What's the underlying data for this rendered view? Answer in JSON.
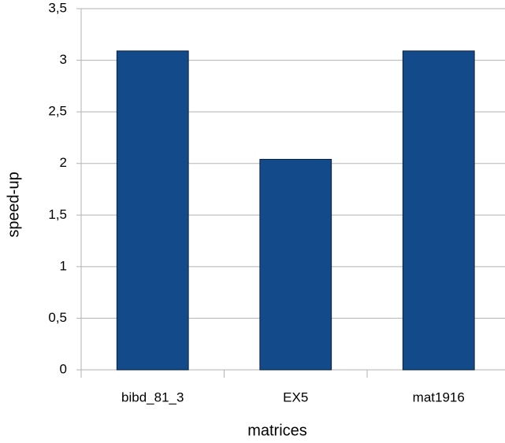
{
  "chart_data": {
    "type": "bar",
    "x_label": "matrices",
    "y_label": "speed-up",
    "categories": [
      "bibd_81_3",
      "EX5",
      "mat1916"
    ],
    "values": [
      3.09,
      2.04,
      3.09
    ],
    "color": "#134a89",
    "ylim": [
      0,
      3.5
    ],
    "yticks": [
      0,
      {
        "value": 0.5,
        "label": "0,5"
      },
      1,
      {
        "value": 1.5,
        "label": "1,5"
      },
      2,
      {
        "value": 2.5,
        "label": "2,5"
      },
      3,
      {
        "value": 3.5,
        "label": "3,5"
      }
    ],
    "grid": true
  }
}
